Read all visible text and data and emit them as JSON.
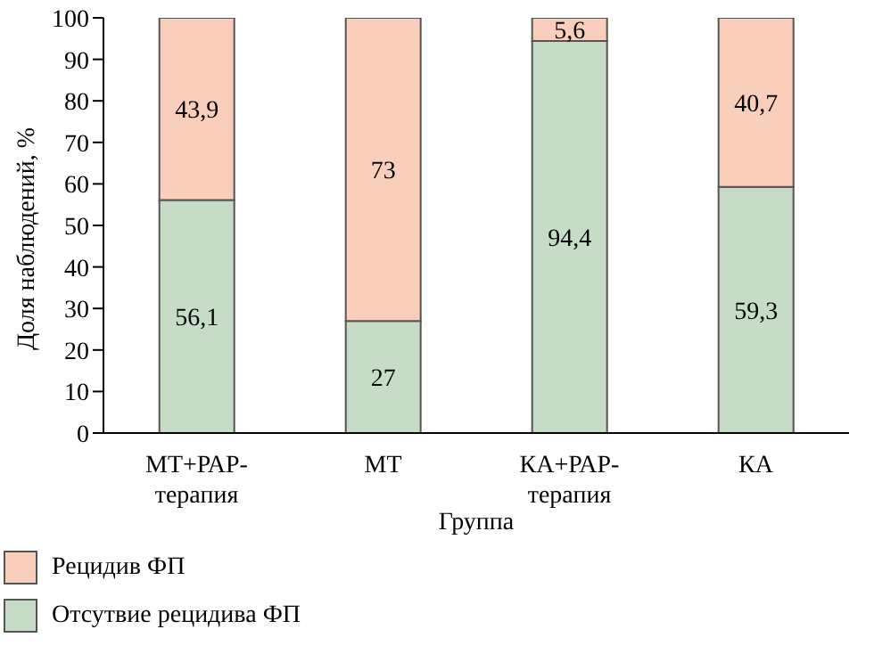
{
  "chart_data": {
    "type": "bar",
    "stacked": true,
    "xlabel": "Группа",
    "ylabel": "Доля наблюдений, %",
    "categories": [
      "МТ+РАР-терапия",
      "МТ",
      "КА+РАР-терапия",
      "КА"
    ],
    "series": [
      {
        "name": "Отсутвие рецидива ФП",
        "color": "#c6dcc7",
        "values": [
          56.1,
          27,
          94.4,
          59.3
        ],
        "value_labels": [
          "56,1",
          "27",
          "94,4",
          "59,3"
        ]
      },
      {
        "name": "Рецидив ФП",
        "color": "#f9cfbc",
        "values": [
          43.9,
          73,
          5.6,
          40.7
        ],
        "value_labels": [
          "43,9",
          "73",
          "5,6",
          "40,7"
        ]
      }
    ],
    "ylim": [
      0,
      100
    ],
    "yticks": [
      0,
      10,
      20,
      30,
      40,
      50,
      60,
      70,
      80,
      90,
      100
    ],
    "grid": false,
    "legend": "bottom"
  }
}
